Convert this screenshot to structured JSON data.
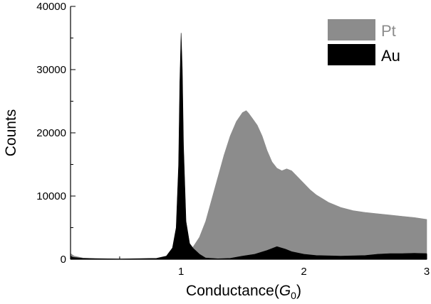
{
  "chart_data": {
    "type": "area",
    "xlabel": "Conductance",
    "xlabel_symbol": "G",
    "xlabel_subscript": "0",
    "ylabel": "Counts",
    "xlim": [
      0.1,
      3.0
    ],
    "ylim": [
      0,
      40000
    ],
    "xticks": [
      1,
      2,
      3
    ],
    "xtick_labels": [
      "1",
      "2",
      "3"
    ],
    "yticks": [
      0,
      10000,
      20000,
      30000,
      40000
    ],
    "ytick_labels": [
      "0",
      "10000",
      "20000",
      "30000",
      "40000"
    ],
    "grid": false,
    "legend_position": "top-right",
    "series": [
      {
        "name": "Pt",
        "color": "#8c8c8c",
        "label_color": "#8c8c8c",
        "x": [
          0.1,
          0.13,
          0.2,
          0.3,
          0.5,
          0.8,
          0.95,
          1.0,
          1.05,
          1.1,
          1.15,
          1.2,
          1.25,
          1.3,
          1.35,
          1.4,
          1.45,
          1.5,
          1.53,
          1.55,
          1.58,
          1.62,
          1.66,
          1.7,
          1.74,
          1.78,
          1.82,
          1.86,
          1.9,
          1.95,
          2.0,
          2.05,
          2.1,
          2.2,
          2.3,
          2.4,
          2.5,
          2.6,
          2.7,
          2.8,
          2.9,
          3.0
        ],
        "values": [
          900,
          500,
          200,
          80,
          30,
          60,
          250,
          600,
          1100,
          2000,
          3500,
          6000,
          9500,
          13000,
          16500,
          19500,
          21800,
          23200,
          23500,
          23100,
          22300,
          21200,
          19500,
          17200,
          15400,
          14400,
          14000,
          14300,
          14000,
          13000,
          12000,
          11000,
          10200,
          9000,
          8200,
          7700,
          7400,
          7200,
          7000,
          6800,
          6600,
          6300
        ]
      },
      {
        "name": "Au",
        "color": "#000000",
        "label_color": "#000000",
        "x": [
          0.1,
          0.12,
          0.2,
          0.5,
          0.8,
          0.88,
          0.93,
          0.96,
          0.98,
          0.99,
          1.0,
          1.01,
          1.02,
          1.04,
          1.07,
          1.1,
          1.15,
          1.2,
          1.3,
          1.4,
          1.5,
          1.6,
          1.7,
          1.78,
          1.85,
          1.9,
          2.0,
          2.1,
          2.3,
          2.5,
          2.6,
          2.7,
          2.8,
          2.9,
          3.0
        ],
        "values": [
          500,
          300,
          150,
          50,
          150,
          500,
          1800,
          5000,
          15000,
          28000,
          35800,
          30000,
          18000,
          6000,
          2500,
          1700,
          800,
          200,
          80,
          150,
          500,
          800,
          1400,
          2000,
          1600,
          1200,
          800,
          600,
          500,
          600,
          800,
          900,
          900,
          950,
          900
        ]
      }
    ]
  }
}
